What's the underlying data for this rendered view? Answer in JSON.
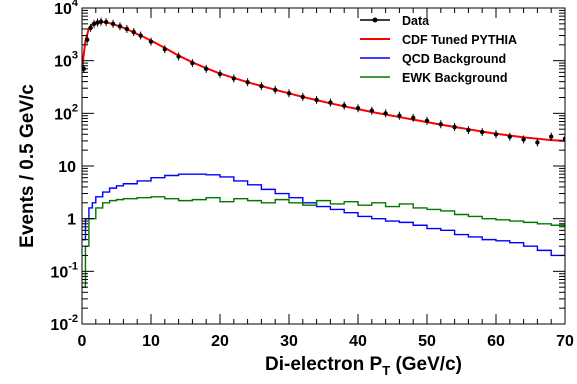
{
  "chart_data": {
    "type": "line",
    "title": "",
    "xlabel_main": "Di-electron P",
    "xlabel_sub": "T",
    "xlabel_tail": " (GeV/c)",
    "ylabel": "Events / 0.5 GeV/c",
    "xlim": [
      0,
      70
    ],
    "ylim": [
      0.01,
      10000
    ],
    "y_scale": "log",
    "x_ticks": [
      "0",
      "10",
      "20",
      "30",
      "40",
      "50",
      "60",
      "70"
    ],
    "y_ticks": [
      {
        "base": "10",
        "exp": "-2",
        "value": 0.01
      },
      {
        "base": "10",
        "exp": "-1",
        "value": 0.1
      },
      {
        "base": "1",
        "exp": "",
        "value": 1
      },
      {
        "base": "10",
        "exp": "",
        "value": 10
      },
      {
        "base": "10",
        "exp": "2",
        "value": 100
      },
      {
        "base": "10",
        "exp": "3",
        "value": 1000
      },
      {
        "base": "10",
        "exp": "4",
        "value": 10000
      }
    ],
    "legend_position": "top-right",
    "series": [
      {
        "name": "Data",
        "color": "#000000",
        "style": "points",
        "x": [
          0.25,
          0.75,
          1.25,
          1.75,
          2.25,
          2.75,
          3.5,
          4.5,
          5.5,
          6.5,
          7.5,
          8.5,
          10,
          12,
          14,
          16,
          18,
          20,
          22,
          24,
          26,
          28,
          30,
          32,
          34,
          36,
          38,
          40,
          42,
          44,
          46,
          48,
          50,
          52,
          54,
          56,
          58,
          60,
          62,
          64,
          66,
          68,
          70
        ],
        "y": [
          700,
          2500,
          4200,
          5000,
          5300,
          5500,
          5400,
          5000,
          4500,
          4000,
          3500,
          3000,
          2300,
          1650,
          1200,
          900,
          700,
          560,
          460,
          390,
          330,
          280,
          240,
          205,
          180,
          160,
          140,
          125,
          112,
          100,
          90,
          82,
          72,
          62,
          55,
          48,
          44,
          40,
          36,
          32,
          28,
          36,
          33
        ]
      },
      {
        "name": "CDF Tuned PYTHIA",
        "color": "#ff0000",
        "style": "line",
        "x": [
          0,
          0.5,
          1,
          1.5,
          2,
          2.5,
          3,
          3.5,
          4,
          5,
          6,
          7,
          8,
          9,
          10,
          12,
          14,
          16,
          18,
          20,
          22,
          24,
          26,
          28,
          30,
          32,
          34,
          36,
          38,
          40,
          42,
          44,
          46,
          48,
          50,
          52,
          54,
          56,
          58,
          60,
          62,
          64,
          66,
          68,
          70
        ],
        "y": [
          700,
          2400,
          4100,
          4900,
          5300,
          5450,
          5450,
          5350,
          5150,
          4700,
          4200,
          3700,
          3200,
          2800,
          2400,
          1750,
          1250,
          930,
          720,
          570,
          470,
          390,
          330,
          280,
          240,
          205,
          178,
          155,
          136,
          120,
          106,
          95,
          85,
          76,
          68,
          61,
          55,
          50,
          45,
          41,
          38,
          35,
          33,
          31,
          30
        ]
      },
      {
        "name": "QCD Background",
        "color": "#0000ff",
        "style": "step",
        "x": [
          0,
          0.5,
          1,
          1.5,
          2,
          3,
          4,
          5,
          6,
          8,
          10,
          12,
          14,
          16,
          18,
          20,
          22,
          24,
          26,
          28,
          30,
          32,
          34,
          36,
          38,
          40,
          42,
          44,
          46,
          48,
          50,
          52,
          54,
          56,
          58,
          60,
          62,
          64,
          66,
          68,
          70
        ],
        "y": [
          0.4,
          1.0,
          1.6,
          2.0,
          2.6,
          3.2,
          3.8,
          4.2,
          4.6,
          5.2,
          6.0,
          6.6,
          7.0,
          7.0,
          6.8,
          6.2,
          5.2,
          4.4,
          3.6,
          3.0,
          2.5,
          2.0,
          1.7,
          1.5,
          1.3,
          1.1,
          1.0,
          0.9,
          0.85,
          0.75,
          0.65,
          0.6,
          0.5,
          0.45,
          0.4,
          0.38,
          0.35,
          0.3,
          0.25,
          0.2,
          0.3
        ]
      },
      {
        "name": "EWK Background",
        "color": "#007700",
        "style": "step",
        "x": [
          0,
          0.5,
          1,
          2,
          3,
          4,
          5,
          6,
          8,
          10,
          12,
          14,
          16,
          18,
          20,
          22,
          24,
          26,
          28,
          30,
          32,
          34,
          36,
          38,
          40,
          42,
          44,
          46,
          48,
          50,
          52,
          54,
          56,
          58,
          60,
          62,
          64,
          66,
          68,
          70
        ],
        "y": [
          0.05,
          0.3,
          1.0,
          1.6,
          2.0,
          2.2,
          2.3,
          2.4,
          2.5,
          2.6,
          2.4,
          2.2,
          2.3,
          2.5,
          2.1,
          2.4,
          2.2,
          2.0,
          2.3,
          2.0,
          1.8,
          2.2,
          1.9,
          2.1,
          1.8,
          2.0,
          1.7,
          1.9,
          1.6,
          1.5,
          1.4,
          1.2,
          1.1,
          1.0,
          0.95,
          0.9,
          0.85,
          0.8,
          0.75,
          0.7
        ]
      }
    ]
  }
}
